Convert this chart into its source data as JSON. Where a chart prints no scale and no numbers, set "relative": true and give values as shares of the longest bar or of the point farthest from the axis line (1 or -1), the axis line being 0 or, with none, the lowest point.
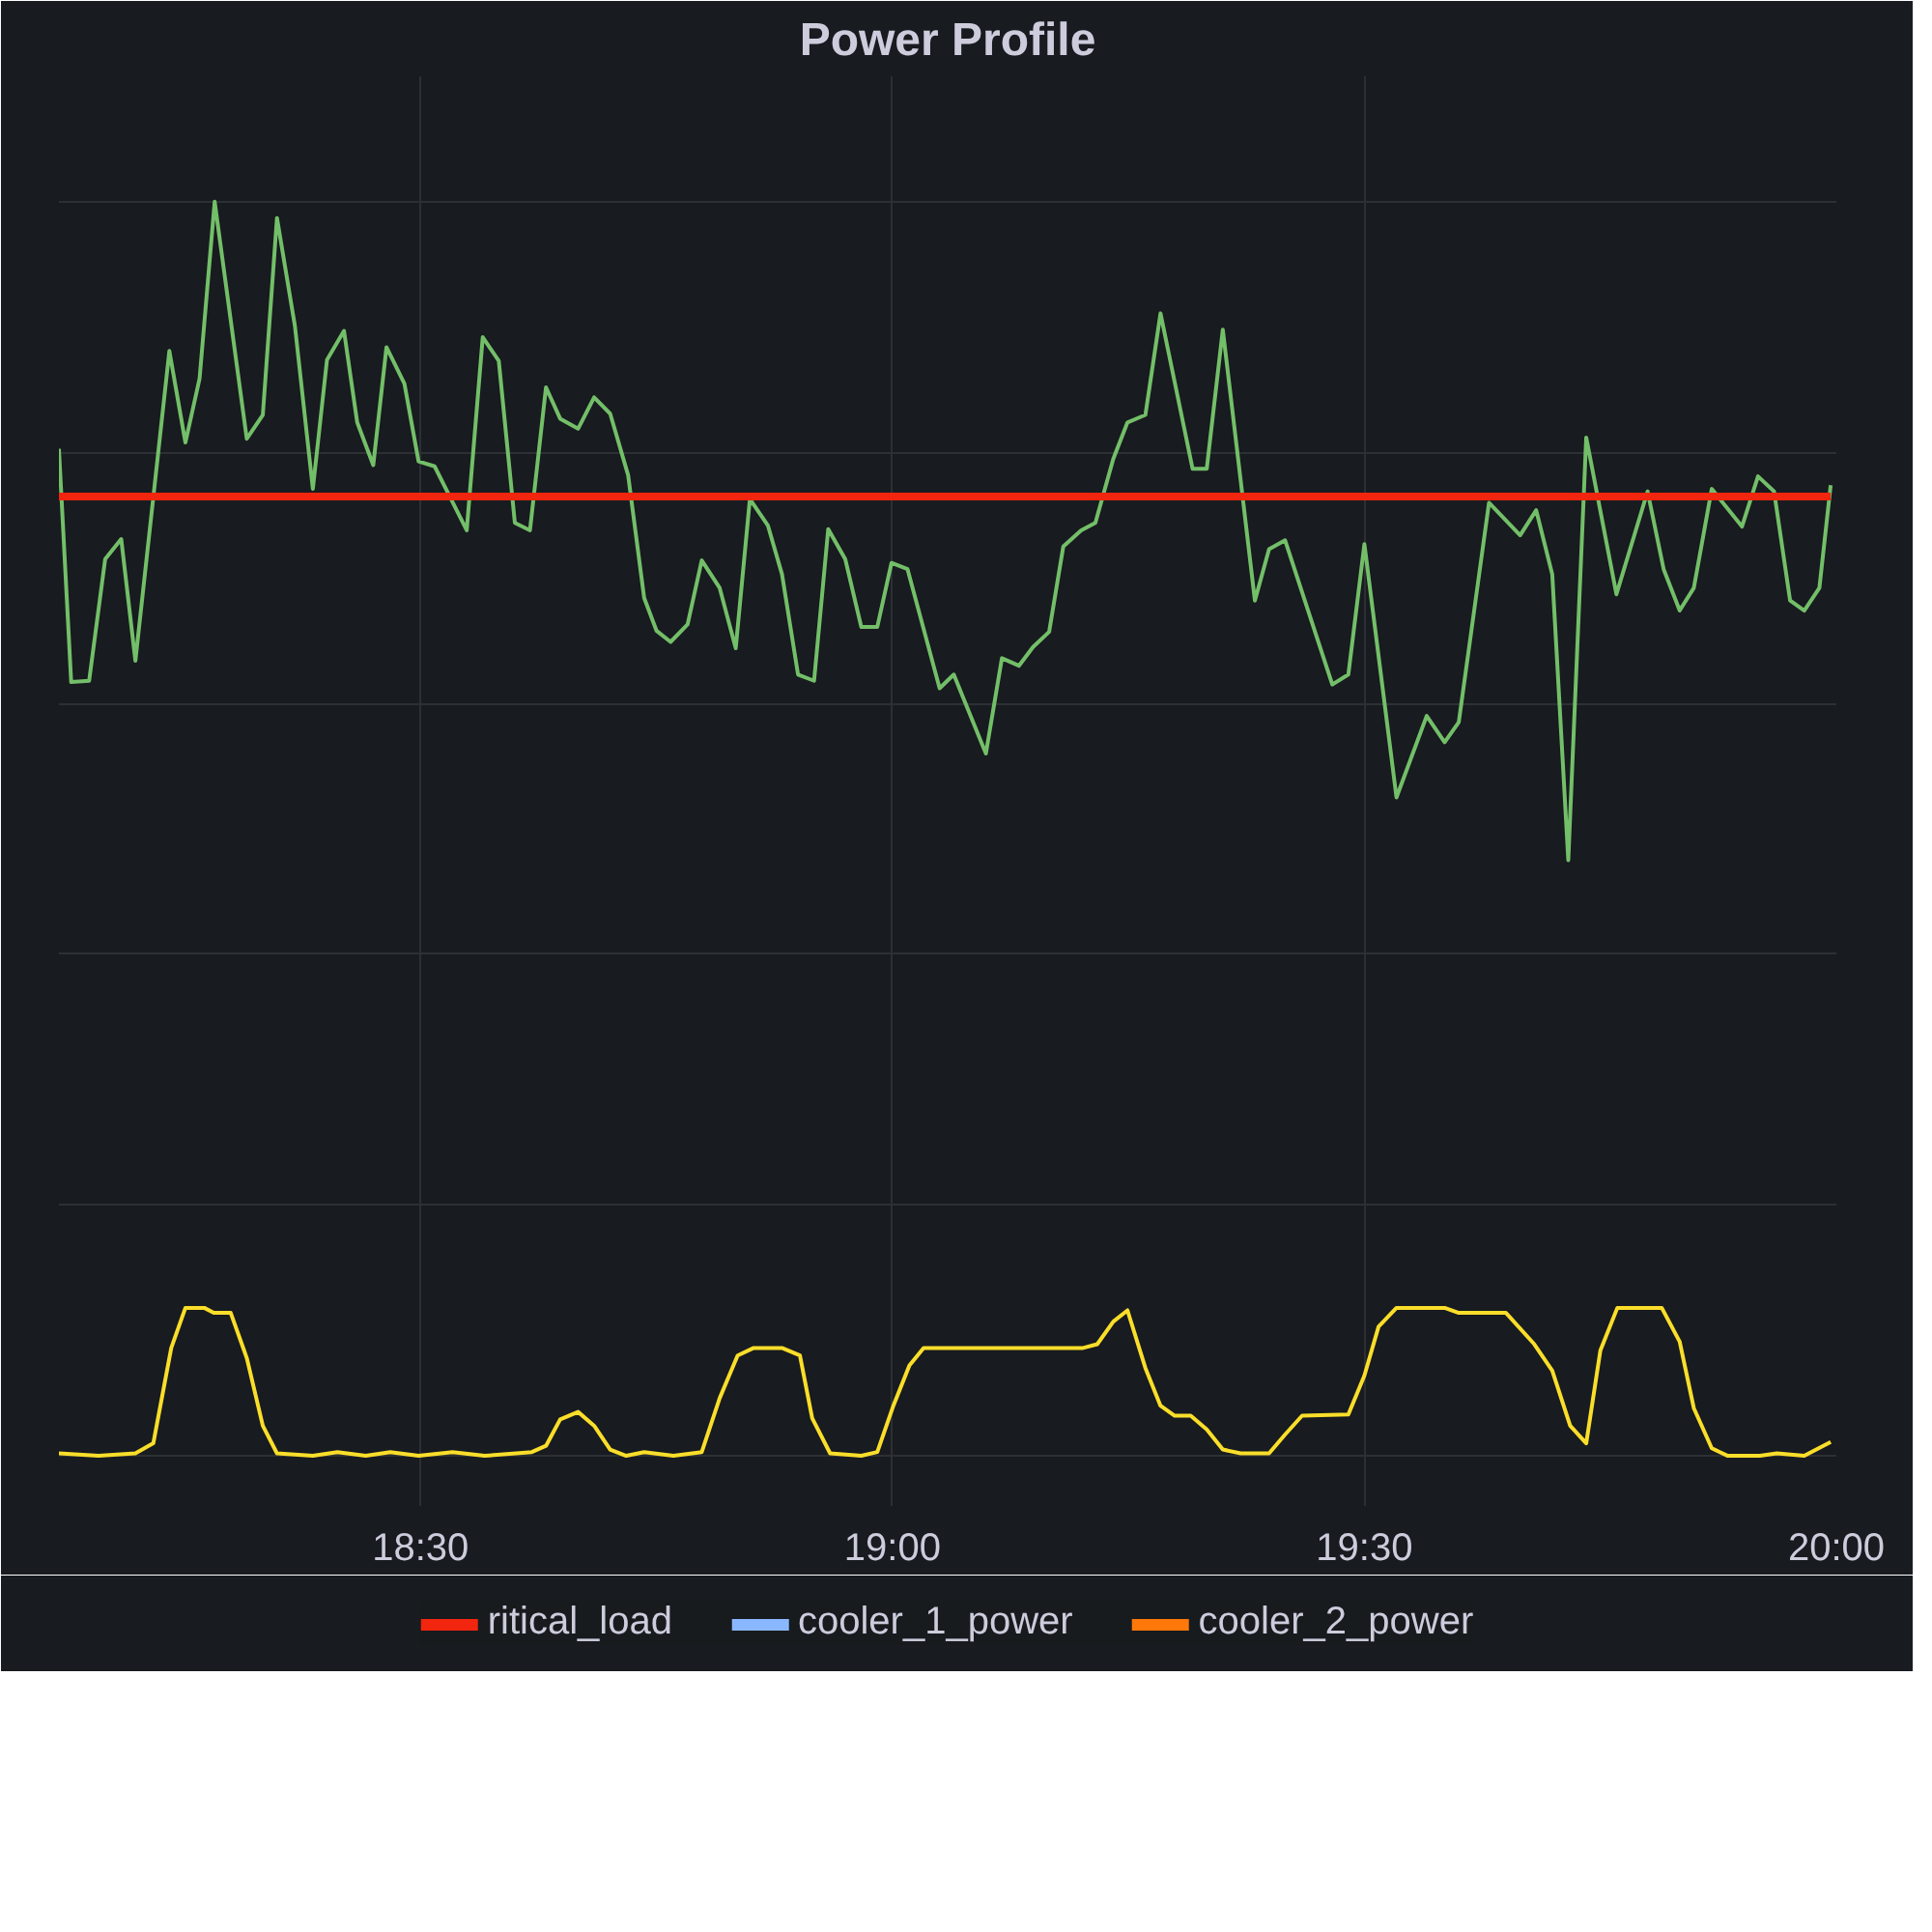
{
  "chart_data": {
    "type": "line",
    "title": "Power Profile",
    "relative": true,
    "grid": true,
    "legend": "bottom",
    "marker": "none",
    "line_style": "solid",
    "xlim": [
      18.117,
      20.0
    ],
    "xticks": [
      {
        "value": 18.5,
        "label": "18:30"
      },
      {
        "value": 19.0,
        "label": "19:00"
      },
      {
        "value": 19.5,
        "label": "19:30"
      },
      {
        "value": 20.0,
        "label": "20:00"
      }
    ],
    "series": [
      {
        "color": "#73bf69",
        "x": [
          18.117,
          18.13,
          18.149,
          18.166,
          18.183,
          18.198,
          18.234,
          18.251,
          18.266,
          18.282,
          18.316,
          18.333,
          18.348,
          18.367,
          18.386,
          18.401,
          18.419,
          18.433,
          18.45,
          18.464,
          18.483,
          18.498,
          18.515,
          18.549,
          18.566,
          18.583,
          18.6,
          18.616,
          18.633,
          18.648,
          18.667,
          18.684,
          18.701,
          18.72,
          18.737,
          18.75,
          18.765,
          18.783,
          18.798,
          18.817,
          18.834,
          18.849,
          18.868,
          18.883,
          18.9,
          18.917,
          18.932,
          18.95,
          18.967,
          18.984,
          18.999,
          19.016,
          19.05,
          19.065,
          19.099,
          19.116,
          19.134,
          19.149,
          19.166,
          19.181,
          19.2,
          19.215,
          19.234,
          19.249,
          19.268,
          19.284,
          19.318,
          19.333,
          19.35,
          19.384,
          19.399,
          19.416,
          19.466,
          19.483,
          19.5,
          19.534,
          19.566,
          19.585,
          19.6,
          19.632,
          19.665,
          19.682,
          19.699,
          19.716,
          19.735,
          19.767,
          19.8,
          19.817,
          19.834,
          19.849,
          19.868,
          19.9,
          19.917,
          19.934,
          19.951,
          19.966,
          19.982,
          19.994
        ],
        "values": [
          0.803,
          0.617,
          0.618,
          0.715,
          0.731,
          0.634,
          0.881,
          0.808,
          0.859,
          1.0,
          0.811,
          0.83,
          0.987,
          0.901,
          0.771,
          0.874,
          0.897,
          0.824,
          0.79,
          0.884,
          0.855,
          0.793,
          0.789,
          0.738,
          0.892,
          0.873,
          0.744,
          0.738,
          0.852,
          0.827,
          0.819,
          0.844,
          0.831,
          0.782,
          0.684,
          0.658,
          0.649,
          0.663,
          0.714,
          0.692,
          0.644,
          0.763,
          0.742,
          0.703,
          0.623,
          0.618,
          0.739,
          0.715,
          0.661,
          0.661,
          0.712,
          0.707,
          0.612,
          0.623,
          0.56,
          0.636,
          0.63,
          0.645,
          0.657,
          0.725,
          0.738,
          0.744,
          0.795,
          0.824,
          0.83,
          0.911,
          0.787,
          0.787,
          0.898,
          0.682,
          0.723,
          0.73,
          0.615,
          0.623,
          0.727,
          0.525,
          0.59,
          0.569,
          0.585,
          0.76,
          0.734,
          0.754,
          0.703,
          0.475,
          0.812,
          0.687,
          0.769,
          0.707,
          0.674,
          0.692,
          0.771,
          0.741,
          0.781,
          0.769,
          0.682,
          0.674,
          0.692,
          0.774
        ]
      },
      {
        "color": "#fade2a",
        "x": [
          18.117,
          18.159,
          18.198,
          18.217,
          18.236,
          18.251,
          18.271,
          18.281,
          18.299,
          18.316,
          18.333,
          18.348,
          18.386,
          18.412,
          18.442,
          18.468,
          18.498,
          18.534,
          18.568,
          18.618,
          18.633,
          18.648,
          18.667,
          18.684,
          18.701,
          18.718,
          18.737,
          18.768,
          18.798,
          18.817,
          18.836,
          18.853,
          18.883,
          18.902,
          18.915,
          18.934,
          18.967,
          18.984,
          19.001,
          19.018,
          19.033,
          19.056,
          19.202,
          19.217,
          19.234,
          19.249,
          19.268,
          19.284,
          19.299,
          19.316,
          19.333,
          19.35,
          19.369,
          19.399,
          19.416,
          19.434,
          19.483,
          19.5,
          19.515,
          19.534,
          19.585,
          19.6,
          19.65,
          19.68,
          19.699,
          19.718,
          19.735,
          19.75,
          19.768,
          19.815,
          19.834,
          19.849,
          19.868,
          19.885,
          19.919,
          19.937,
          19.966,
          19.994
        ],
        "values": [
          0.002,
          0,
          0.002,
          0.01,
          0.086,
          0.118,
          0.118,
          0.114,
          0.114,
          0.078,
          0.024,
          0.002,
          0,
          0.003,
          0,
          0.003,
          0,
          0.003,
          0,
          0.003,
          0.008,
          0.029,
          0.035,
          0.024,
          0.005,
          0,
          0.003,
          0,
          0.003,
          0.046,
          0.08,
          0.086,
          0.086,
          0.08,
          0.03,
          0.002,
          0,
          0.003,
          0.04,
          0.072,
          0.086,
          0.086,
          0.086,
          0.089,
          0.107,
          0.116,
          0.07,
          0.04,
          0.032,
          0.032,
          0.021,
          0.005,
          0.002,
          0.002,
          0.017,
          0.032,
          0.033,
          0.064,
          0.103,
          0.118,
          0.118,
          0.114,
          0.114,
          0.089,
          0.068,
          0.024,
          0.01,
          0.084,
          0.118,
          0.118,
          0.091,
          0.038,
          0.006,
          0,
          0,
          0.002,
          0,
          0.011
        ]
      },
      {
        "name": "ritical_load",
        "color": "#f2250f",
        "x": [
          18.117,
          19.994
        ],
        "values": [
          0.765,
          0.765
        ]
      },
      {
        "name": "cooler_1_power",
        "color": "#8ab8ff"
      },
      {
        "name": "cooler_2_power",
        "color": "#ff780a"
      }
    ]
  }
}
